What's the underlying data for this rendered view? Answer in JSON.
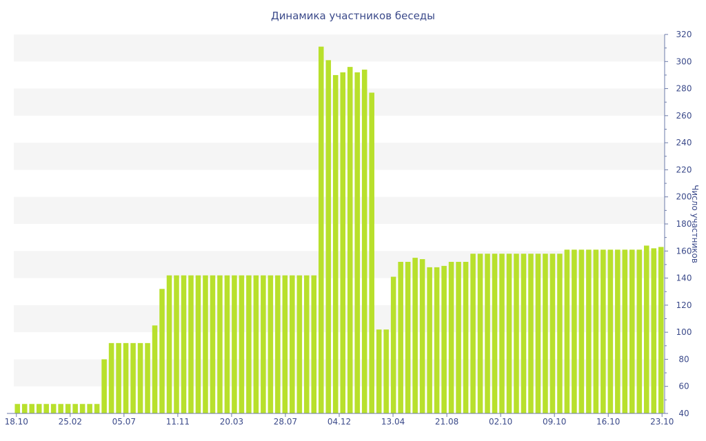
{
  "chart_data": {
    "type": "bar",
    "title": "Динамика участников беседы",
    "xlabel": "",
    "ylabel": "Число участников",
    "y_axis_side": "right",
    "ylim": [
      40,
      320
    ],
    "yticks": [
      40,
      60,
      80,
      100,
      120,
      140,
      160,
      180,
      200,
      220,
      240,
      260,
      280,
      300,
      320
    ],
    "x_tick_labels": [
      "18.10",
      "25.02",
      "05.07",
      "11.11",
      "20.03",
      "28.07",
      "04.12",
      "13.04",
      "21.08",
      "02.10",
      "09.10",
      "16.10",
      "23.10"
    ],
    "grid": "alternating horizontal bands",
    "values": [
      47,
      47,
      47,
      47,
      47,
      47,
      47,
      47,
      47,
      47,
      47,
      47,
      80,
      92,
      92,
      92,
      92,
      92,
      92,
      105,
      132,
      142,
      142,
      142,
      142,
      142,
      142,
      142,
      142,
      142,
      142,
      142,
      142,
      142,
      142,
      142,
      142,
      142,
      142,
      142,
      142,
      142,
      311,
      301,
      290,
      292,
      296,
      292,
      294,
      277,
      102,
      102,
      141,
      152,
      152,
      155,
      154,
      148,
      148,
      149,
      152,
      152,
      152,
      158,
      158,
      158,
      158,
      158,
      158,
      158,
      158,
      158,
      158,
      158,
      158,
      158,
      161,
      161,
      161,
      161,
      161,
      161,
      161,
      161,
      161,
      161,
      161,
      164,
      162,
      163
    ],
    "colors": {
      "bar": "#b8e02c",
      "band": "#f5f5f5",
      "text": "#3b4a8a",
      "axis": "#6b7aa8"
    }
  }
}
